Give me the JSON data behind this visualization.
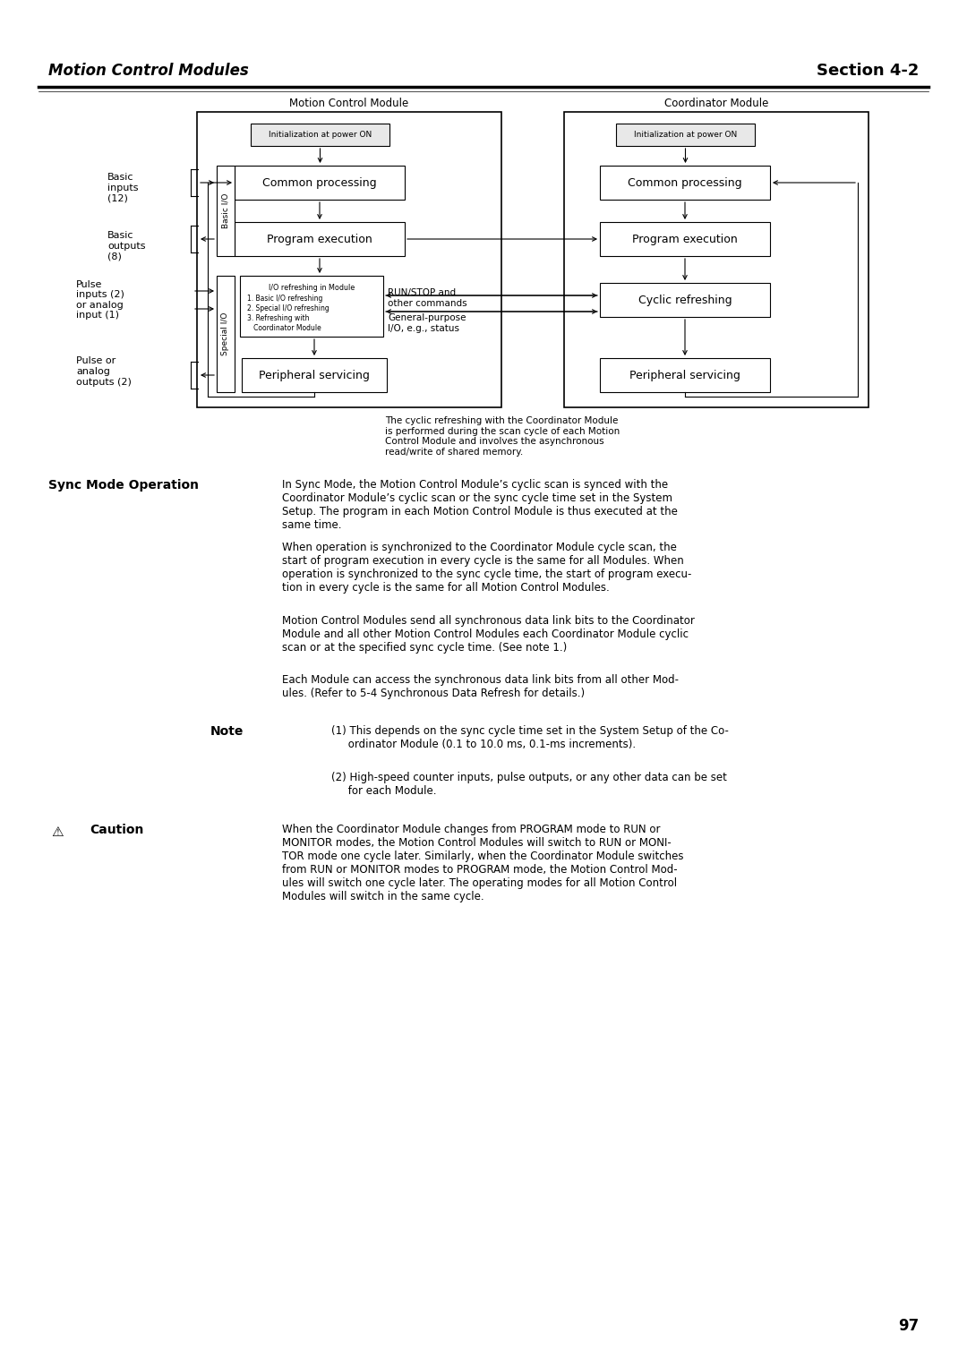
{
  "page_title_left": "Motion Control Modules",
  "page_title_right": "Section 4-2",
  "page_number": "97",
  "diagram_title_left": "Motion Control Module",
  "diagram_title_right": "Coordinator Module",
  "basic_io_label": "Basic I/O",
  "special_io_label": "Special I/O",
  "basic_inputs_label": "Basic\ninputs\n(12)",
  "basic_outputs_label": "Basic\noutputs\n(8)",
  "pulse_inputs_label": "Pulse\ninputs (2)\nor analog\ninput (1)",
  "pulse_outputs_label": "Pulse or\nanalog\noutputs (2)",
  "run_stop_label": "RUN/STOP and\nother commands",
  "general_purpose_label": "General-purpose\nI/O, e.g., status",
  "cyclic_note": "The cyclic refreshing with the Coordinator Module\nis performed during the scan cycle of each Motion\nControl Module and involves the asynchronous\nread/write of shared memory.",
  "sync_mode_label": "Sync Mode Operation",
  "para1": "In Sync Mode, the Motion Control Module’s cyclic scan is synced with the\nCoordinator Module’s cyclic scan or the sync cycle time set in the System\nSetup. The program in each Motion Control Module is thus executed at the\nsame time.",
  "para2": "When operation is synchronized to the Coordinator Module cycle scan, the\nstart of program execution in every cycle is the same for all Modules. When\noperation is synchronized to the sync cycle time, the start of program execu-\ntion in every cycle is the same for all Motion Control Modules.",
  "para3": "Motion Control Modules send all synchronous data link bits to the Coordinator\nModule and all other Motion Control Modules each Coordinator Module cyclic\nscan or at the specified sync cycle time. (See note 1.)",
  "para4": "Each Module can access the synchronous data link bits from all other Mod-\nules. (Refer to 5-4 Synchronous Data Refresh for details.)",
  "note_label": "Note",
  "note1": "(1) This depends on the sync cycle time set in the System Setup of the Co-\n     ordinator Module (0.1 to 10.0 ms, 0.1-ms increments).",
  "note2": "(2) High-speed counter inputs, pulse outputs, or any other data can be set\n     for each Module.",
  "caution_label": "Caution",
  "caution_text": "When the Coordinator Module changes from PROGRAM mode to RUN or\nMONITOR modes, the Motion Control Modules will switch to RUN or MONI-\nTOR mode one cycle later. Similarly, when the Coordinator Module switches\nfrom RUN or MONITOR modes to PROGRAM mode, the Motion Control Mod-\nules will switch one cycle later. The operating modes for all Motion Control\nModules will switch in the same cycle."
}
